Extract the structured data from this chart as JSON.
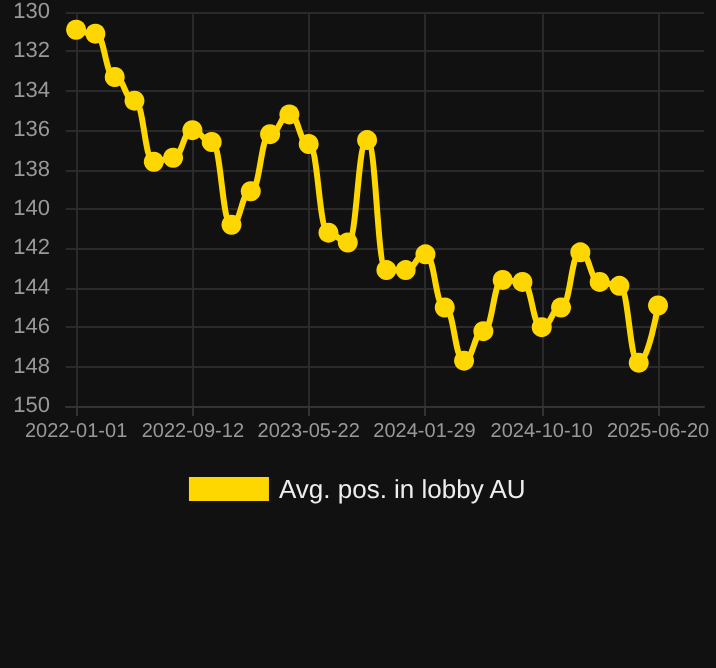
{
  "chart_data": {
    "type": "line",
    "x": [
      "2022-01-01",
      "2022-02-12",
      "2022-03-26",
      "2022-05-08",
      "2022-06-19",
      "2022-07-31",
      "2022-09-11",
      "2022-10-23",
      "2022-12-05",
      "2023-01-16",
      "2023-02-27",
      "2023-04-10",
      "2023-05-22",
      "2023-07-04",
      "2023-08-15",
      "2023-09-26",
      "2023-11-07",
      "2023-12-19",
      "2024-01-31",
      "2024-03-13",
      "2024-04-24",
      "2024-06-05",
      "2024-07-17",
      "2024-08-29",
      "2024-10-10",
      "2024-11-21",
      "2025-01-02",
      "2025-02-13",
      "2025-03-28",
      "2025-05-09",
      "2025-06-20"
    ],
    "series": [
      {
        "name": "Avg. pos. in lobby AU",
        "color": "#ffd700",
        "values": [
          130.9,
          131.1,
          133.3,
          134.5,
          137.6,
          137.4,
          136.0,
          136.6,
          140.8,
          139.1,
          136.2,
          135.2,
          136.7,
          141.2,
          141.7,
          136.5,
          143.1,
          143.1,
          142.3,
          145.0,
          147.7,
          146.2,
          143.6,
          143.7,
          146.0,
          145.0,
          142.2,
          143.7,
          143.9,
          147.8,
          144.9
        ]
      }
    ],
    "xlim": [
      "2021-12-10",
      "2025-09-28"
    ],
    "xticks": [
      "2022-01-01",
      "2022-09-12",
      "2023-05-22",
      "2024-01-29",
      "2024-10-10",
      "2025-06-20"
    ],
    "ylim": [
      150,
      130
    ],
    "yticks": [
      130,
      132,
      134,
      136,
      138,
      140,
      142,
      144,
      146,
      148,
      150
    ],
    "grid": true,
    "legend": "bottom",
    "marker": "circle",
    "line_style": "solid"
  }
}
